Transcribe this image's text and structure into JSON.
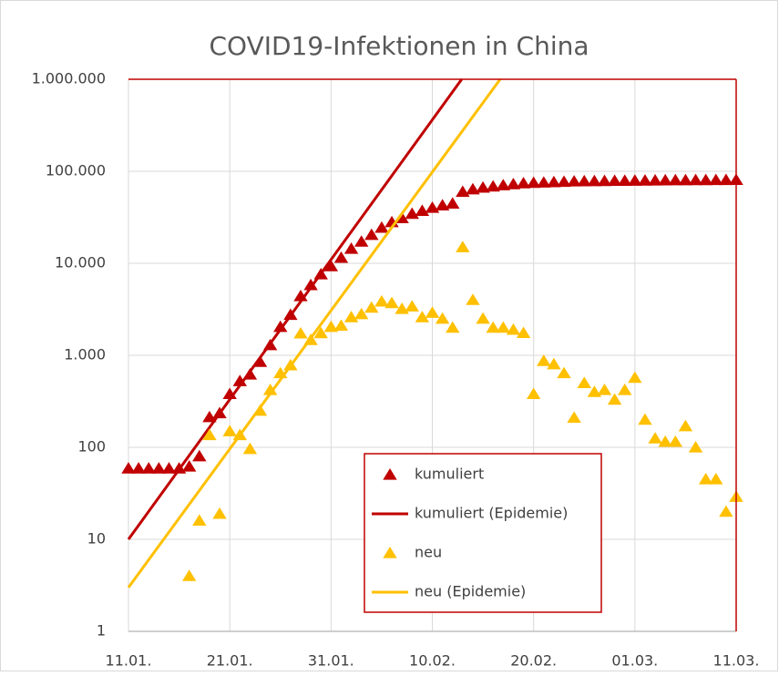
{
  "chart_data": {
    "type": "scatter",
    "title": "COVID19-Infektionen in China",
    "log_y": true,
    "grid": true,
    "legend": "lower center",
    "xlim": [
      0,
      60
    ],
    "xticks": [
      {
        "value": 0,
        "label": "11.01."
      },
      {
        "value": 10,
        "label": "21.01."
      },
      {
        "value": 20,
        "label": "31.01."
      },
      {
        "value": 30,
        "label": "10.02."
      },
      {
        "value": 40,
        "label": "20.02."
      },
      {
        "value": 50,
        "label": "01.03."
      },
      {
        "value": 60,
        "label": "11.03."
      }
    ],
    "ylim": [
      1,
      1000000
    ],
    "yticks": [
      1,
      10,
      100,
      {
        "value": 1000,
        "label": "1.000"
      },
      {
        "value": 10000,
        "label": "10.000"
      },
      {
        "value": 100000,
        "label": "100.000"
      },
      {
        "value": 1000000,
        "label": "1.000.000"
      }
    ],
    "series": [
      {
        "name": "kumuliert",
        "type": "scatter",
        "color": "#c00000",
        "x": [
          0,
          1,
          2,
          3,
          4,
          5,
          6,
          7,
          8,
          9,
          10,
          11,
          12,
          13,
          14,
          15,
          16,
          17,
          18,
          19,
          20,
          21,
          22,
          23,
          24,
          25,
          26,
          27,
          28,
          29,
          30,
          31,
          32,
          33,
          34,
          35,
          36,
          37,
          38,
          39,
          40,
          41,
          42,
          43,
          44,
          45,
          46,
          47,
          48,
          49,
          50,
          51,
          52,
          53,
          54,
          55,
          56,
          57,
          58,
          59,
          60
        ],
        "values": [
          59,
          59,
          59,
          59,
          59,
          59,
          62,
          80,
          213,
          235,
          380,
          525,
          620,
          850,
          1290,
          2040,
          2760,
          4400,
          5800,
          7600,
          9300,
          11500,
          14400,
          17200,
          20400,
          24400,
          28000,
          31000,
          34500,
          37200,
          40200,
          42600,
          44600,
          59800,
          63800,
          66500,
          68500,
          70500,
          72400,
          74200,
          75000,
          75500,
          76300,
          77000,
          77700,
          78000,
          78200,
          78500,
          78800,
          79000,
          79200,
          79400,
          79600,
          79800,
          80000,
          80100,
          80200,
          80300,
          80400,
          80500,
          80700
        ]
      },
      {
        "name": "kumuliert (Epidemie)",
        "type": "line",
        "color": "#c00000",
        "x": [
          0,
          32.9
        ],
        "values": [
          10,
          1000000
        ]
      },
      {
        "name": "neu",
        "type": "scatter",
        "color": "#ffc000",
        "x": [
          6,
          7,
          8,
          9,
          10,
          11,
          12,
          13,
          14,
          15,
          16,
          17,
          18,
          19,
          20,
          21,
          22,
          23,
          24,
          25,
          26,
          27,
          28,
          29,
          30,
          31,
          32,
          33,
          34,
          35,
          36,
          37,
          38,
          39,
          40,
          41,
          42,
          43,
          44,
          45,
          46,
          47,
          48,
          49,
          50,
          51,
          52,
          53,
          54,
          55,
          56,
          57,
          58,
          59,
          60
        ],
        "values": [
          4,
          16,
          136,
          19,
          150,
          136,
          96,
          250,
          420,
          640,
          780,
          1730,
          1470,
          1740,
          2040,
          2100,
          2600,
          2800,
          3300,
          3850,
          3700,
          3200,
          3400,
          2600,
          2900,
          2500,
          2000,
          15000,
          4000,
          2500,
          2000,
          2000,
          1900,
          1750,
          380,
          870,
          800,
          640,
          210,
          500,
          400,
          420,
          330,
          420,
          570,
          200,
          125,
          115,
          115,
          170,
          100,
          45,
          45,
          20,
          29
        ]
      },
      {
        "name": "neu (Epidemie)",
        "type": "line",
        "color": "#ffc000",
        "x": [
          0,
          36.7
        ],
        "values": [
          3,
          1000000
        ]
      }
    ]
  }
}
